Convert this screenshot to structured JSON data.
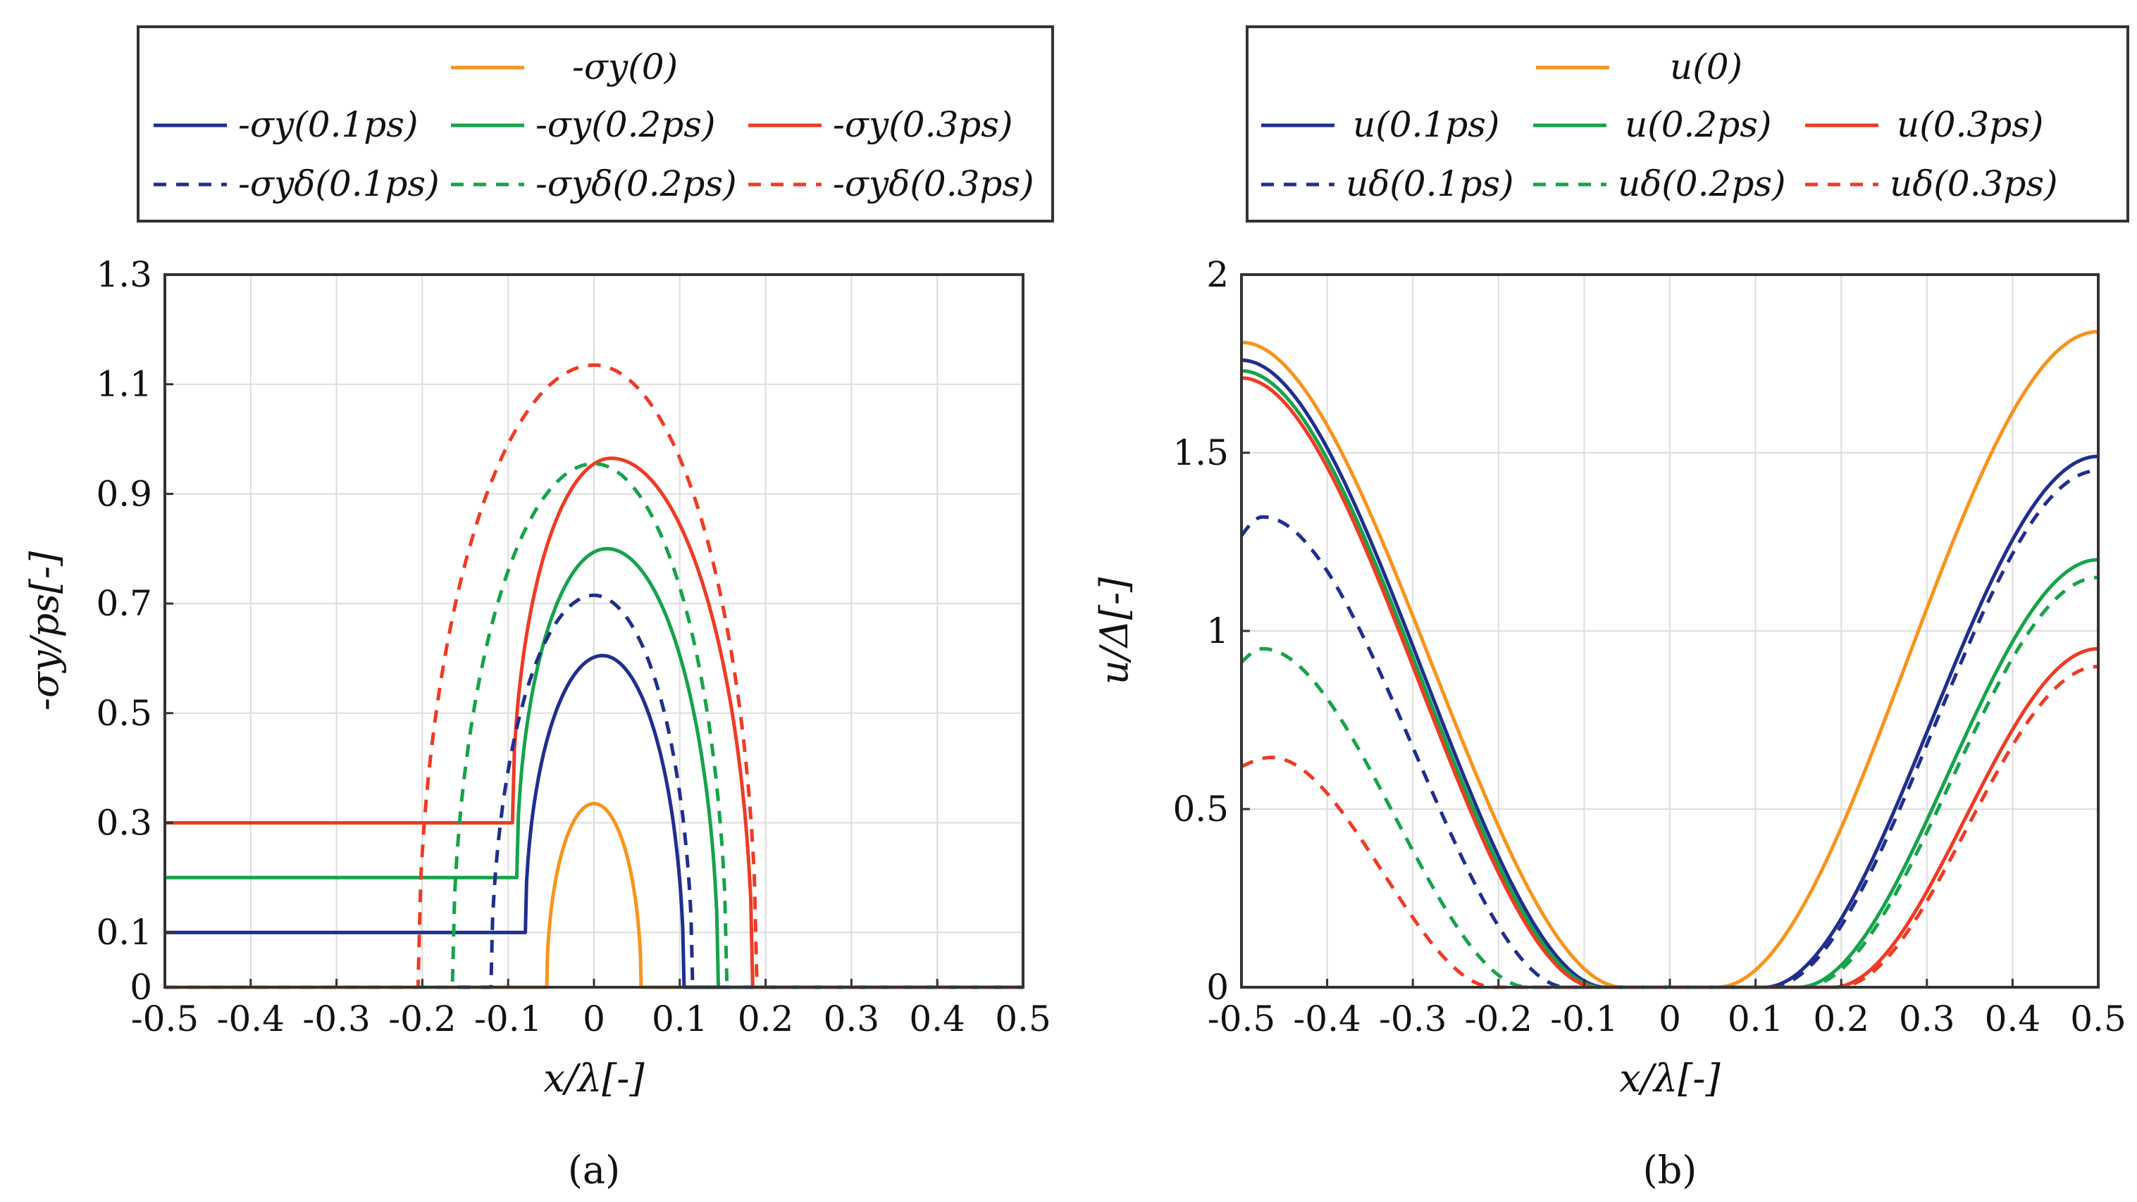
{
  "colors": {
    "p0": "#f7941d",
    "p01": "#1f2e8f",
    "p02": "#16a34a",
    "p03": "#ef3b24",
    "frame": "#333333",
    "grid": "#dddddd"
  },
  "chart_data": [
    {
      "id": "a",
      "type": "line",
      "caption": "(a)",
      "xlabel": "x/λ[-]",
      "ylabel": "-σy/ps[-]",
      "xlim": [
        -0.5,
        0.5
      ],
      "ylim": [
        0,
        1.3
      ],
      "xticks": [
        -0.5,
        -0.4,
        -0.3,
        -0.2,
        -0.1,
        0,
        0.1,
        0.2,
        0.3,
        0.4,
        0.5
      ],
      "xtick_labels": [
        "-0.5",
        "-0.4",
        "-0.3",
        "-0.2",
        "-0.1",
        "0",
        "0.1",
        "0.2",
        "0.3",
        "0.4",
        "0.5"
      ],
      "yticks": [
        0,
        0.1,
        0.3,
        0.5,
        0.7,
        0.9,
        1.1,
        1.3
      ],
      "ytick_labels": [
        "0",
        "0.1",
        "0.3",
        "0.5",
        "0.7",
        "0.9",
        "1.1",
        "1.3"
      ],
      "grid": true,
      "legend_rows": [
        [
          "-σy(0)"
        ],
        [
          "-σy(0.1ps)",
          "-σy(0.2ps)",
          "-σy(0.3ps)"
        ],
        [
          "-σyδ(0.1ps)",
          "-σyδ(0.2ps)",
          "-σyδ(0.3ps)"
        ]
      ],
      "series": [
        {
          "name": "-σy(0)",
          "color": "p0",
          "dash": false,
          "kind": "arch",
          "base": 0,
          "a": -0.055,
          "b": 0.055,
          "center": 0.0,
          "peak": 0.335
        },
        {
          "name": "-σy(0.1ps)",
          "color": "p01",
          "dash": false,
          "kind": "arch",
          "base": 0.1,
          "a": -0.08,
          "b": 0.105,
          "center": 0.01,
          "peak": 0.605
        },
        {
          "name": "-σy(0.2ps)",
          "color": "p02",
          "dash": false,
          "kind": "arch",
          "base": 0.2,
          "a": -0.09,
          "b": 0.145,
          "center": 0.015,
          "peak": 0.8
        },
        {
          "name": "-σy(0.3ps)",
          "color": "p03",
          "dash": false,
          "kind": "arch",
          "base": 0.3,
          "a": -0.095,
          "b": 0.185,
          "center": 0.02,
          "peak": 0.965
        },
        {
          "name": "-σyδ(0.1ps)",
          "color": "p01",
          "dash": true,
          "kind": "arch",
          "base": 0,
          "a": -0.12,
          "b": 0.115,
          "center": 0.0,
          "peak": 0.715
        },
        {
          "name": "-σyδ(0.2ps)",
          "color": "p02",
          "dash": true,
          "kind": "arch",
          "base": 0,
          "a": -0.165,
          "b": 0.155,
          "center": 0.0,
          "peak": 0.955
        },
        {
          "name": "-σyδ(0.3ps)",
          "color": "p03",
          "dash": true,
          "kind": "arch",
          "base": 0,
          "a": -0.205,
          "b": 0.19,
          "center": 0.0,
          "peak": 1.135
        }
      ]
    },
    {
      "id": "b",
      "type": "line",
      "caption": "(b)",
      "xlabel": "x/λ[-]",
      "ylabel": "u/Δ[-]",
      "xlim": [
        -0.5,
        0.5
      ],
      "ylim": [
        0,
        2
      ],
      "xticks": [
        -0.5,
        -0.4,
        -0.3,
        -0.2,
        -0.1,
        0,
        0.1,
        0.2,
        0.3,
        0.4,
        0.5
      ],
      "xtick_labels": [
        "-0.5",
        "-0.4",
        "-0.3",
        "-0.2",
        "-0.1",
        "0",
        "0.1",
        "0.2",
        "0.3",
        "0.4",
        "0.5"
      ],
      "yticks": [
        0,
        0.5,
        1,
        1.5,
        2
      ],
      "ytick_labels": [
        "0",
        "0.5",
        "1",
        "1.5",
        "2"
      ],
      "grid": true,
      "legend_rows": [
        [
          "u(0)"
        ],
        [
          "u(0.1ps)",
          "u(0.2ps)",
          "u(0.3ps)"
        ],
        [
          "uδ(0.1ps)",
          "uδ(0.2ps)",
          "uδ(0.3ps)"
        ]
      ],
      "series": [
        {
          "name": "u(0)",
          "color": "p0",
          "dash": false,
          "kind": "valley",
          "left_points": [
            [
              -0.5,
              1.81
            ],
            [
              -0.055,
              0
            ]
          ],
          "right_points": [
            [
              0.055,
              0
            ],
            [
              0.5,
              1.84
            ]
          ]
        },
        {
          "name": "u(0.1ps)",
          "color": "p01",
          "dash": false,
          "kind": "valley",
          "left_points": [
            [
              -0.5,
              1.76
            ],
            [
              -0.075,
              0
            ]
          ],
          "right_points": [
            [
              0.11,
              0
            ],
            [
              0.5,
              1.49
            ]
          ]
        },
        {
          "name": "u(0.2ps)",
          "color": "p02",
          "dash": false,
          "kind": "valley",
          "left_points": [
            [
              -0.5,
              1.73
            ],
            [
              -0.08,
              0
            ]
          ],
          "right_points": [
            [
              0.15,
              0
            ],
            [
              0.5,
              1.2
            ]
          ]
        },
        {
          "name": "u(0.3ps)",
          "color": "p03",
          "dash": false,
          "kind": "valley",
          "left_points": [
            [
              -0.5,
              1.71
            ],
            [
              -0.085,
              0
            ]
          ],
          "right_points": [
            [
              0.19,
              0
            ],
            [
              0.5,
              0.95
            ]
          ]
        },
        {
          "name": "uδ(0.1ps)",
          "color": "p01",
          "dash": true,
          "kind": "valley",
          "left_points": [
            [
              -0.475,
              1.32
            ],
            [
              -0.12,
              0
            ]
          ],
          "right_points": [
            [
              0.115,
              0
            ],
            [
              0.5,
              1.45
            ]
          ]
        },
        {
          "name": "uδ(0.2ps)",
          "color": "p02",
          "dash": true,
          "kind": "valley",
          "left_points": [
            [
              -0.475,
              0.95
            ],
            [
              -0.165,
              0
            ]
          ],
          "right_points": [
            [
              0.155,
              0
            ],
            [
              0.5,
              1.15
            ]
          ]
        },
        {
          "name": "uδ(0.3ps)",
          "color": "p03",
          "dash": true,
          "kind": "valley",
          "left_points": [
            [
              -0.465,
              0.645
            ],
            [
              -0.205,
              0
            ]
          ],
          "right_points": [
            [
              0.195,
              0
            ],
            [
              0.5,
              0.9
            ]
          ]
        }
      ]
    }
  ]
}
